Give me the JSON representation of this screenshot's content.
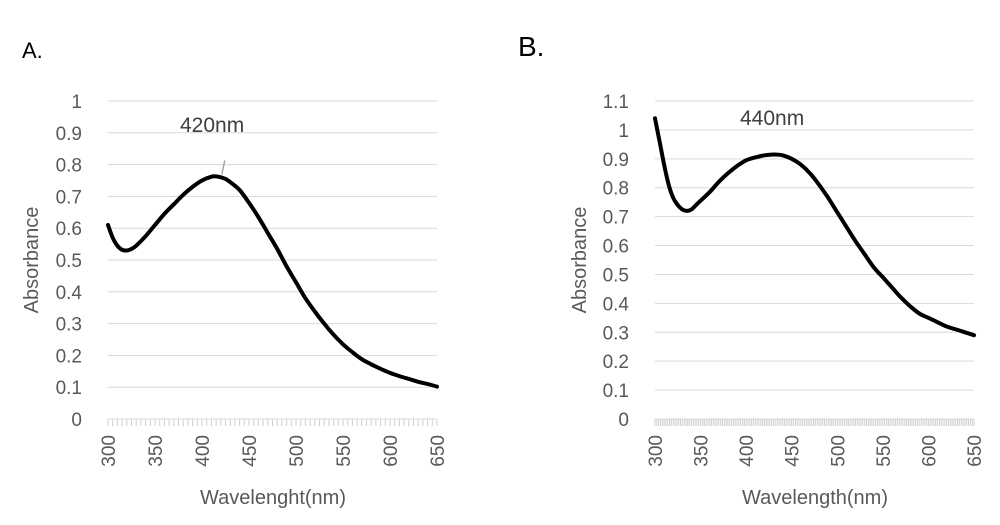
{
  "chart_data": [
    {
      "type": "line",
      "panel_label": "A.",
      "title": "",
      "xlabel": "Wavelenght(nm)",
      "ylabel": "Absorbance",
      "xlim": [
        300,
        650
      ],
      "ylim": [
        0,
        1
      ],
      "x_ticks": [
        "300",
        "350",
        "400",
        "450",
        "500",
        "550",
        "600",
        "650"
      ],
      "y_ticks": [
        "0",
        "0.1",
        "0.2",
        "0.3",
        "0.4",
        "0.5",
        "0.6",
        "0.7",
        "0.8",
        "0.9",
        "1"
      ],
      "grid": true,
      "legend": "none",
      "annotation": "420nm",
      "series": [
        {
          "x": [
            300,
            305,
            310,
            315,
            320,
            325,
            330,
            340,
            350,
            360,
            370,
            380,
            390,
            400,
            410,
            415,
            420,
            425,
            430,
            440,
            450,
            460,
            470,
            480,
            490,
            500,
            510,
            520,
            530,
            540,
            550,
            560,
            570,
            580,
            590,
            600,
            610,
            620,
            630,
            640,
            650
          ],
          "y": [
            0.61,
            0.57,
            0.545,
            0.532,
            0.53,
            0.535,
            0.545,
            0.575,
            0.61,
            0.645,
            0.675,
            0.705,
            0.73,
            0.75,
            0.762,
            0.763,
            0.76,
            0.755,
            0.745,
            0.72,
            0.68,
            0.635,
            0.585,
            0.535,
            0.48,
            0.43,
            0.38,
            0.338,
            0.3,
            0.265,
            0.235,
            0.21,
            0.188,
            0.172,
            0.158,
            0.145,
            0.135,
            0.126,
            0.117,
            0.11,
            0.102
          ]
        }
      ]
    },
    {
      "type": "line",
      "panel_label": "B.",
      "title": "",
      "xlabel": "Wavelength(nm)",
      "ylabel": "Absorbance",
      "xlim": [
        300,
        650
      ],
      "ylim": [
        0,
        1.1
      ],
      "x_ticks": [
        "300",
        "350",
        "400",
        "450",
        "500",
        "550",
        "600",
        "650"
      ],
      "y_ticks": [
        "0",
        "0.1",
        "0.2",
        "0.3",
        "0.4",
        "0.5",
        "0.6",
        "0.7",
        "0.8",
        "0.9",
        "1",
        "1.1"
      ],
      "grid": true,
      "legend": "none",
      "annotation": "440nm",
      "series": [
        {
          "x": [
            300,
            305,
            310,
            315,
            320,
            325,
            330,
            335,
            340,
            345,
            350,
            360,
            370,
            380,
            390,
            400,
            410,
            420,
            430,
            440,
            450,
            460,
            470,
            480,
            490,
            500,
            510,
            520,
            530,
            540,
            550,
            560,
            570,
            580,
            590,
            600,
            610,
            620,
            630,
            640,
            650
          ],
          "y": [
            1.04,
            0.96,
            0.88,
            0.81,
            0.765,
            0.74,
            0.725,
            0.72,
            0.725,
            0.74,
            0.755,
            0.785,
            0.82,
            0.85,
            0.875,
            0.895,
            0.905,
            0.912,
            0.915,
            0.912,
            0.9,
            0.88,
            0.85,
            0.81,
            0.765,
            0.715,
            0.665,
            0.615,
            0.57,
            0.525,
            0.49,
            0.455,
            0.42,
            0.39,
            0.365,
            0.35,
            0.335,
            0.32,
            0.31,
            0.3,
            0.29
          ]
        }
      ]
    }
  ]
}
